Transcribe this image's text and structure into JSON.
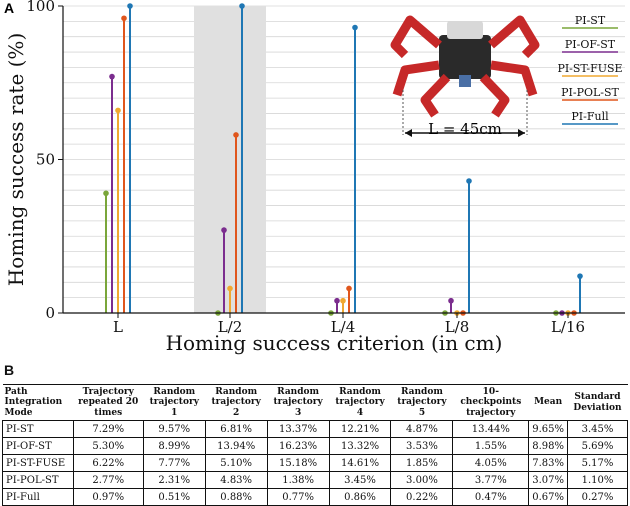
{
  "panel_a": "A",
  "panel_b": "B",
  "chart_data": {
    "type": "stem",
    "title": "",
    "xlabel": "Homing success criterion (in cm)",
    "ylabel": "Homing success rate (%)",
    "ylim": [
      0,
      100
    ],
    "yticks": [
      0,
      50,
      100
    ],
    "categories": [
      "L",
      "L/2",
      "L/4",
      "L/8",
      "L/16"
    ],
    "highlighted_category": "L/2",
    "series": [
      {
        "name": "PI-ST",
        "color": "#7aa63a",
        "values": [
          39,
          0,
          0,
          0,
          0
        ]
      },
      {
        "name": "PI-OF-ST",
        "color": "#7b2d8e",
        "values": [
          77,
          27,
          4,
          4,
          0
        ]
      },
      {
        "name": "PI-ST-FUSE",
        "color": "#f0a830",
        "values": [
          66,
          8,
          4,
          0,
          0
        ]
      },
      {
        "name": "PI-POL-ST",
        "color": "#e0561c",
        "values": [
          96,
          58,
          8,
          0,
          0
        ]
      },
      {
        "name": "PI-Full",
        "color": "#1f77b4",
        "values": [
          100,
          100,
          93,
          43,
          12
        ]
      }
    ],
    "legend_position": "top-right",
    "annotation": "L = 45cm"
  },
  "table": {
    "headers": [
      "Path Integration Mode",
      "Trajectory repeated 20 times",
      "Random trajectory 1",
      "Random trajectory 2",
      "Random trajectory 3",
      "Random trajectory 4",
      "Random trajectory 5",
      "10-checkpoints trajectory",
      "Mean",
      "Standard Deviation"
    ],
    "rows": [
      [
        "PI-ST",
        "7.29%",
        "9.57%",
        "6.81%",
        "13.37%",
        "12.21%",
        "4.87%",
        "13.44%",
        "9.65%",
        "3.45%"
      ],
      [
        "PI-OF-ST",
        "5.30%",
        "8.99%",
        "13.94%",
        "16.23%",
        "13.32%",
        "3.53%",
        "1.55%",
        "8.98%",
        "5.69%"
      ],
      [
        "PI-ST-FUSE",
        "6.22%",
        "7.77%",
        "5.10%",
        "15.18%",
        "14.61%",
        "1.85%",
        "4.05%",
        "7.83%",
        "5.17%"
      ],
      [
        "PI-POL-ST",
        "2.77%",
        "2.31%",
        "4.83%",
        "1.38%",
        "3.45%",
        "3.00%",
        "3.77%",
        "3.07%",
        "1.10%"
      ],
      [
        "PI-Full",
        "0.97%",
        "0.51%",
        "0.88%",
        "0.77%",
        "0.86%",
        "0.22%",
        "0.47%",
        "0.67%",
        "0.27%"
      ]
    ]
  }
}
